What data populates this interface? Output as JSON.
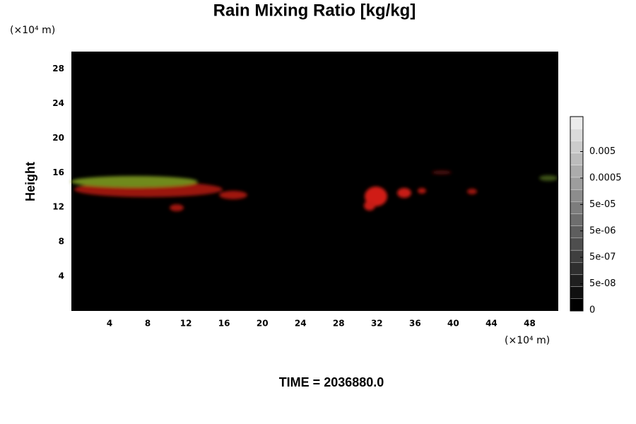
{
  "chart_data": {
    "type": "contour",
    "title": "Rain Mixing Ratio [kg/kg]",
    "y_unit": "(×10⁴ m)",
    "x_unit": "(×10⁴ m)",
    "ylabel": "Height",
    "xlim": [
      0,
      51
    ],
    "ylim": [
      0,
      30
    ],
    "xticks": [
      4,
      8,
      12,
      16,
      20,
      24,
      28,
      32,
      36,
      40,
      44,
      48
    ],
    "yticks": [
      4,
      8,
      12,
      16,
      20,
      24,
      28
    ],
    "colorbar_ticks": [
      0,
      {
        "value": 5e-08,
        "label": "5e-08"
      },
      {
        "value": 5e-07,
        "label": "5e-07"
      },
      {
        "value": 5e-06,
        "label": "5e-06"
      },
      {
        "value": 5e-05,
        "label": "5e-05"
      },
      0.0005,
      0.005
    ],
    "time_label": "TIME = 2036880.0"
  }
}
